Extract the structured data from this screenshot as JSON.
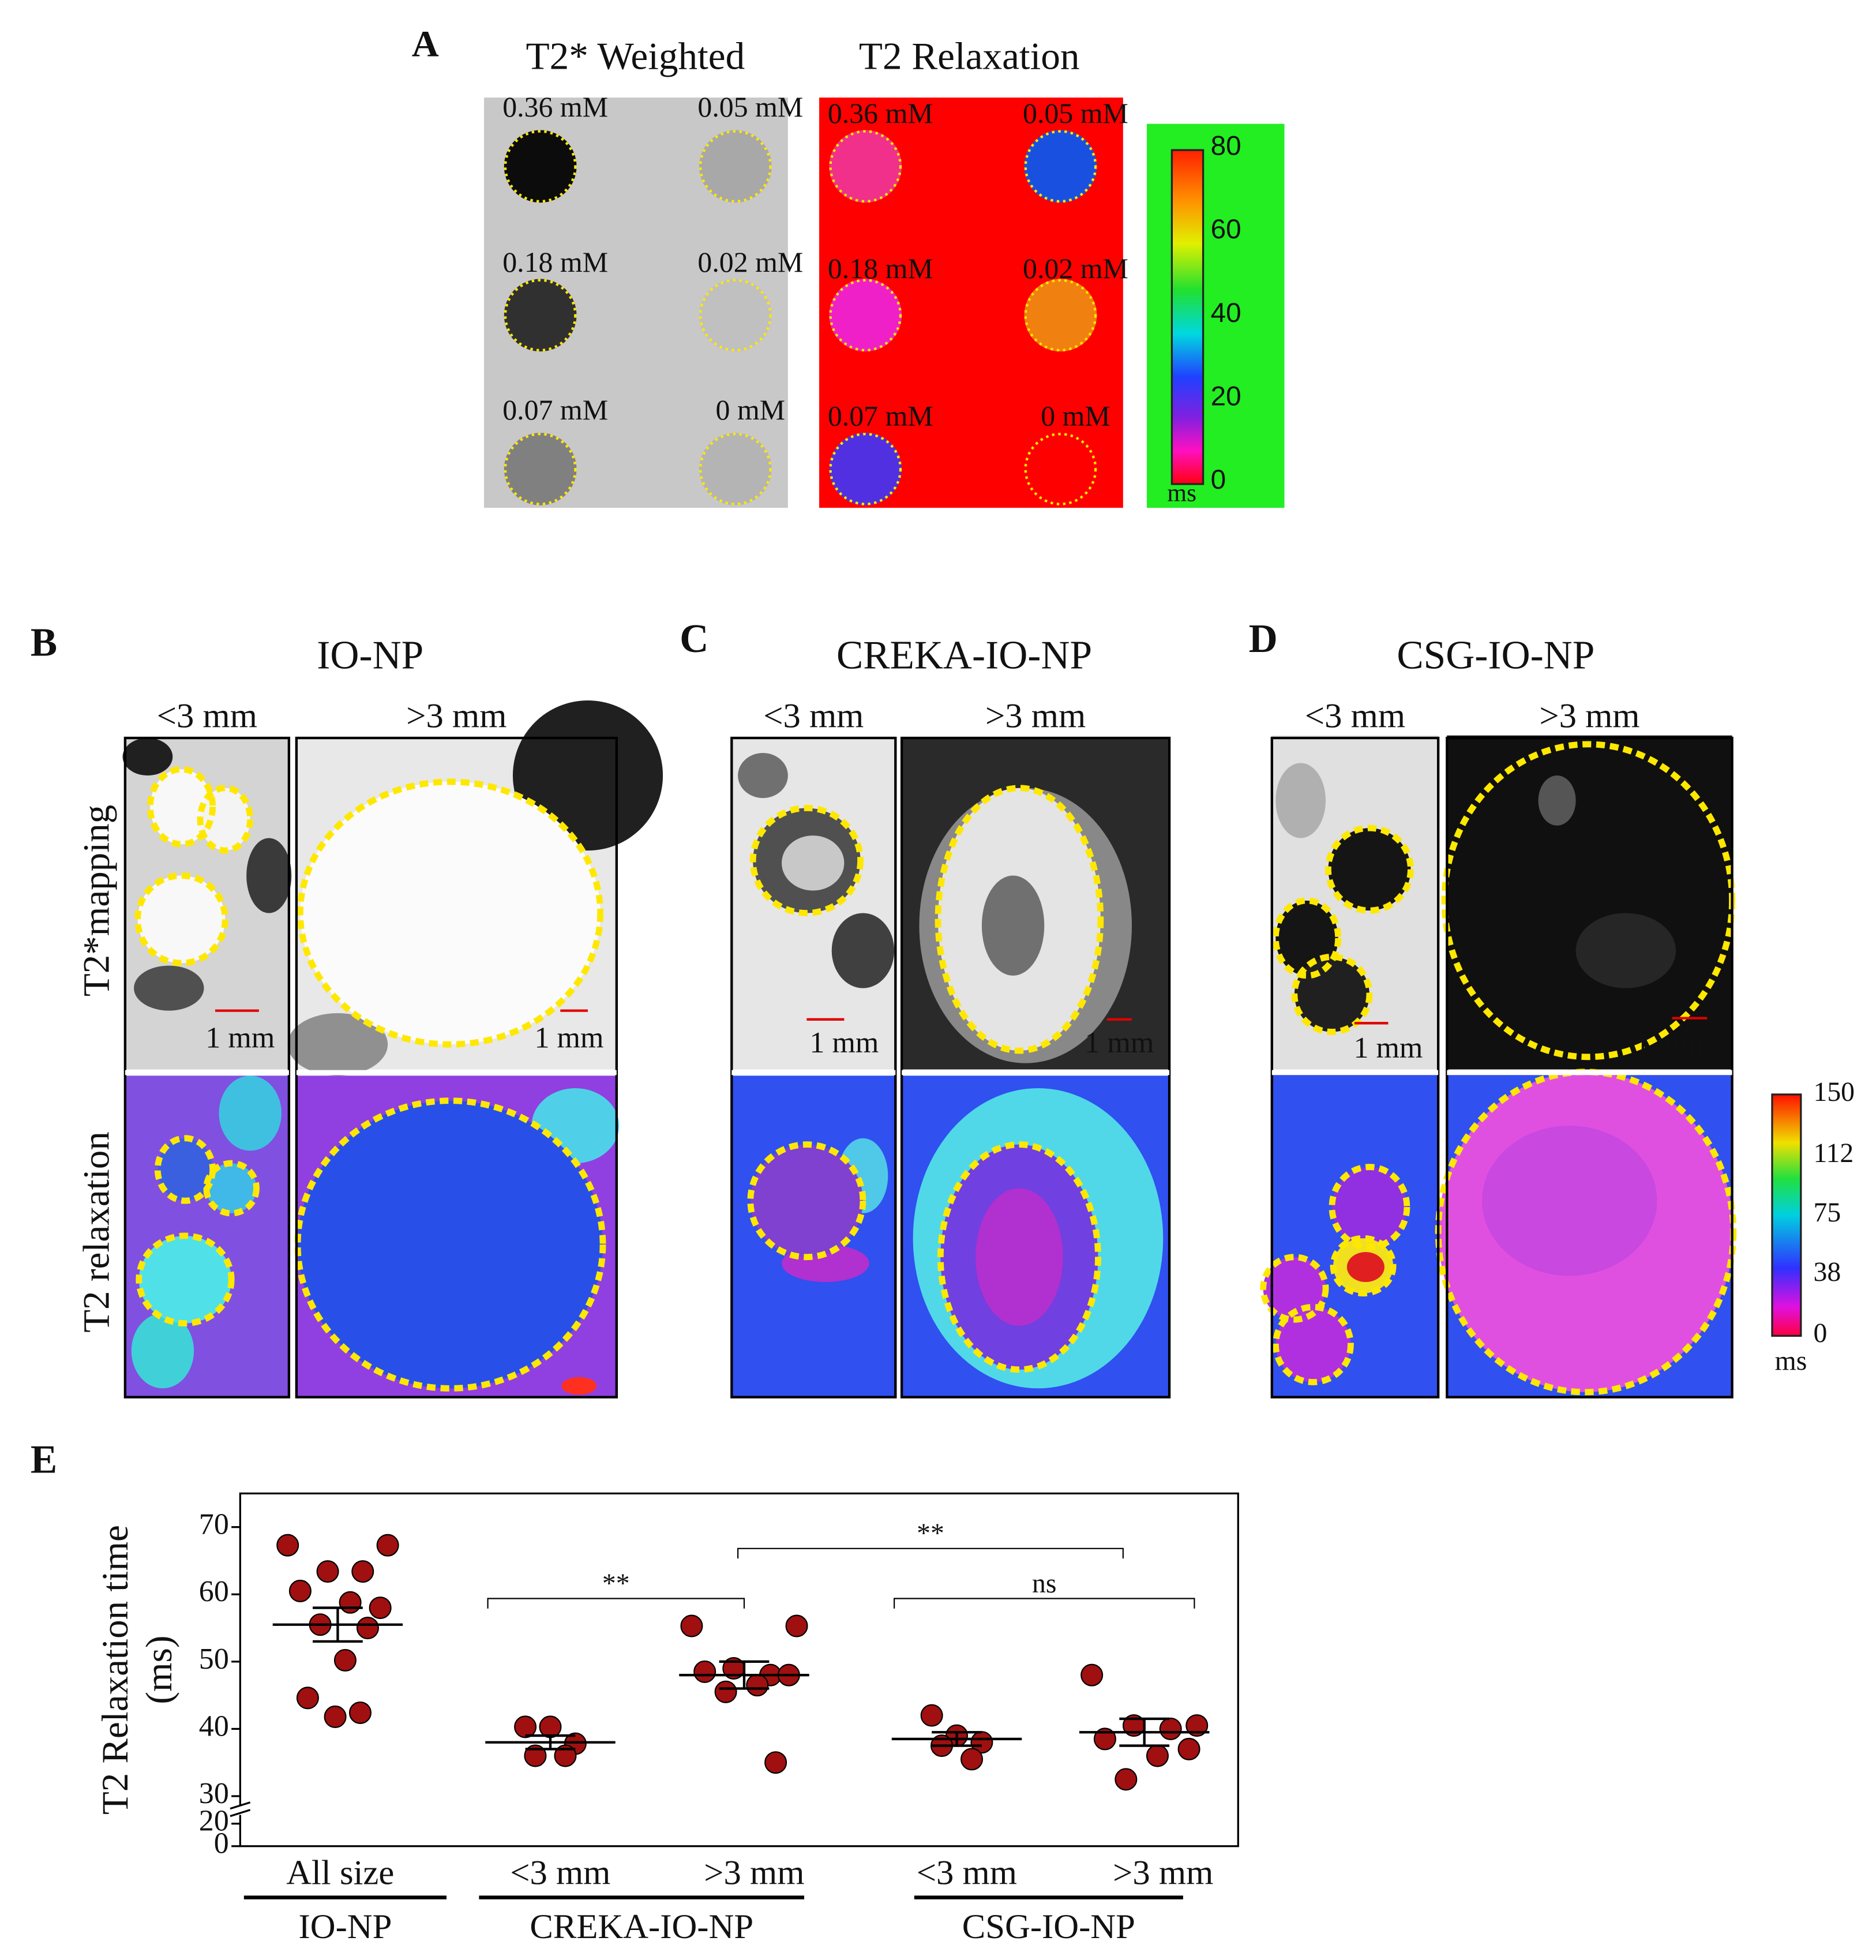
{
  "panel_a": {
    "letter": "A",
    "titles": [
      "T2* Weighted",
      "T2 Relaxation"
    ],
    "concentrations": [
      "0.36 mM",
      "0.05 mM",
      "0.18 mM",
      "0.02 mM",
      "0.07 mM",
      "0 mM"
    ],
    "colorbar": {
      "ticks": [
        80,
        60,
        40,
        20,
        0
      ],
      "unit": "ms"
    }
  },
  "panels": [
    {
      "letter": "B",
      "title": "IO-NP",
      "sizes": [
        "<3 mm",
        ">3 mm"
      ],
      "scale_bars": [
        "1 mm",
        "1 mm"
      ]
    },
    {
      "letter": "C",
      "title": "CREKA-IO-NP",
      "sizes": [
        "<3 mm",
        ">3 mm"
      ],
      "scale_bars": [
        "1 mm",
        "1 mm"
      ]
    },
    {
      "letter": "D",
      "title": "CSG-IO-NP",
      "sizes": [
        "<3 mm",
        ">3 mm"
      ],
      "scale_bars": [
        "1 mm",
        "1 mm"
      ]
    }
  ],
  "row_labels": [
    "T2*mapping",
    "T2 relaxation"
  ],
  "colorbar_bcd": {
    "ticks": [
      150,
      112,
      75,
      38,
      0
    ],
    "unit": "ms"
  },
  "chart_data": {
    "type": "scatter",
    "letter": "E",
    "ylabel": [
      "T2 Relaxation time",
      "(ms)"
    ],
    "categories": [
      "All size",
      "<3 mm",
      ">3 mm",
      "<3 mm",
      ">3 mm"
    ],
    "groups": [
      {
        "label": "IO-NP",
        "from": 0,
        "to": 0
      },
      {
        "label": "CREKA-IO-NP",
        "from": 1,
        "to": 2
      },
      {
        "label": "CSG-IO-NP",
        "from": 3,
        "to": 4
      }
    ],
    "points": [
      [
        67.3,
        67.3,
        63.4,
        63.4,
        60.5,
        58.0,
        58.8,
        55.5,
        55.0,
        50.2,
        44.6,
        42.4,
        41.8
      ],
      [
        40.3,
        40.3,
        37.8,
        36.0,
        36.0
      ],
      [
        55.3,
        55.3,
        49.0,
        48.0,
        48.5,
        48.0,
        46.5,
        45.5,
        35.0
      ],
      [
        42.0,
        39.0,
        38.0,
        37.5,
        35.5
      ],
      [
        48.0,
        40.5,
        40.5,
        40.0,
        38.5,
        37.0,
        36.0,
        32.5
      ]
    ],
    "means": [
      55.5,
      38.0,
      48.0,
      38.5,
      39.5
    ],
    "sem": [
      2.5,
      1.0,
      2.0,
      1.0,
      2.0
    ],
    "color": "#a01010",
    "ylim": [
      0,
      75
    ],
    "axis_break": [
      20,
      30
    ],
    "yticks": [
      0,
      20,
      30,
      40,
      50,
      60,
      70
    ],
    "annotations": [
      {
        "from": 1,
        "to": 2,
        "label": "**"
      },
      {
        "from": 2,
        "to": 4,
        "label": "**"
      },
      {
        "from": 3,
        "to": 4,
        "label": "ns"
      }
    ]
  }
}
